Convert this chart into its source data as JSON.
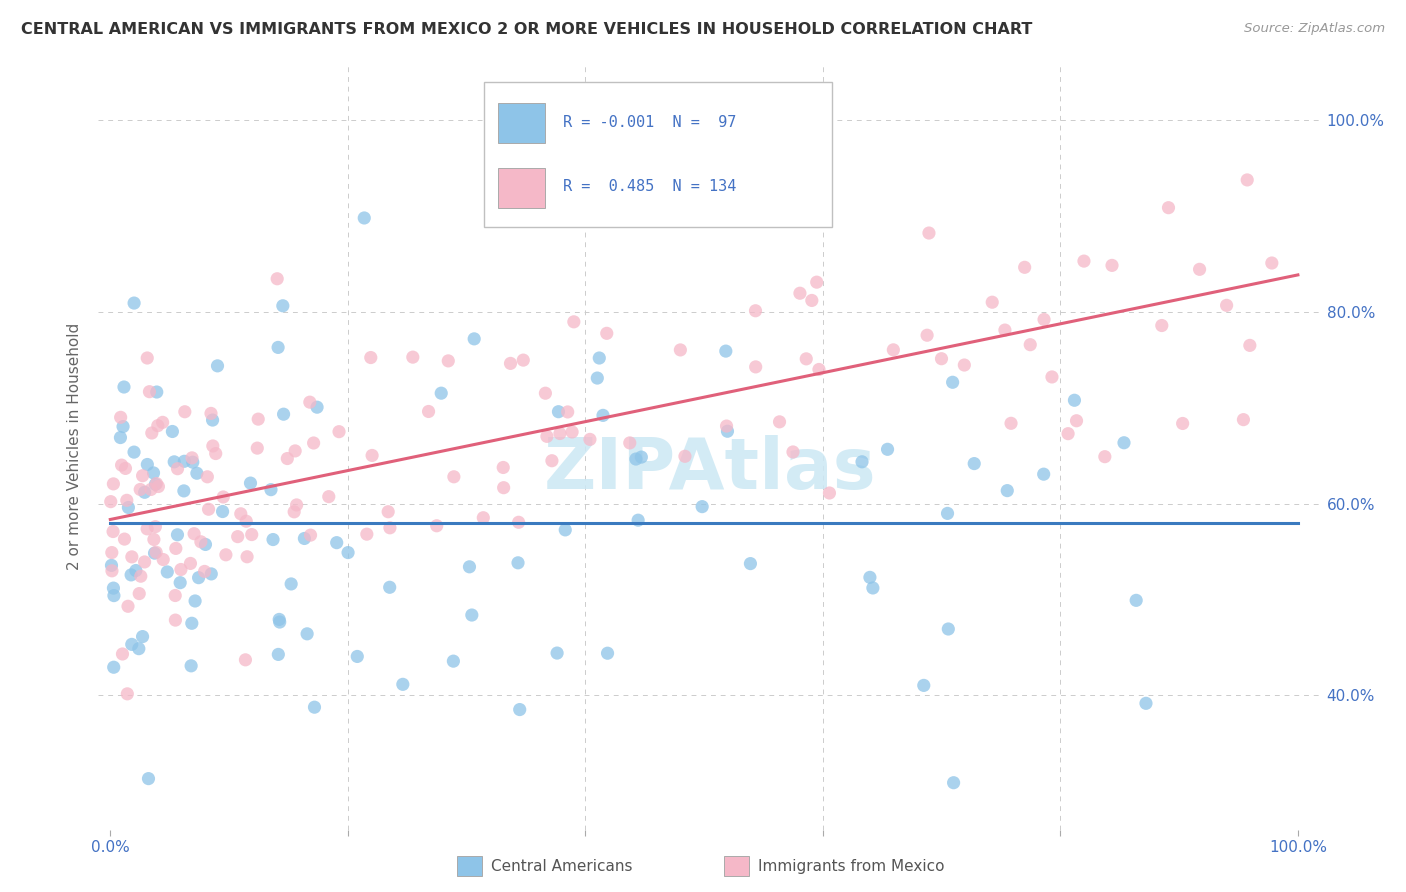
{
  "title": "CENTRAL AMERICAN VS IMMIGRANTS FROM MEXICO 2 OR MORE VEHICLES IN HOUSEHOLD CORRELATION CHART",
  "source": "Source: ZipAtlas.com",
  "ylabel": "2 or more Vehicles in Household",
  "r_blue": -0.001,
  "n_blue": 97,
  "r_pink": 0.485,
  "n_pink": 134,
  "xlim": [
    -0.01,
    1.02
  ],
  "ylim": [
    0.26,
    1.06
  ],
  "x_ticks": [
    0.0,
    0.2,
    0.4,
    0.6,
    0.8,
    1.0
  ],
  "x_tick_labels": [
    "0.0%",
    "",
    "",
    "",
    "",
    "100.0%"
  ],
  "y_ticks": [
    0.4,
    0.6,
    0.8,
    1.0
  ],
  "y_tick_labels": [
    "40.0%",
    "60.0%",
    "80.0%",
    "100.0%"
  ],
  "legend_labels": [
    "Central Americans",
    "Immigrants from Mexico"
  ],
  "blue_color": "#8ec4e8",
  "pink_color": "#f5b8c8",
  "blue_line_color": "#3a7abf",
  "pink_line_color": "#e0607a",
  "blue_line_y_start": 0.585,
  "blue_line_y_end": 0.585,
  "pink_line_y_start": 0.595,
  "pink_line_y_end": 0.855,
  "watermark_text": "ZIPAtlas",
  "watermark_color": "#cce8f4",
  "grid_color": "#cccccc",
  "title_color": "#333333",
  "source_color": "#999999",
  "tick_color": "#4472c4",
  "ylabel_color": "#666666"
}
